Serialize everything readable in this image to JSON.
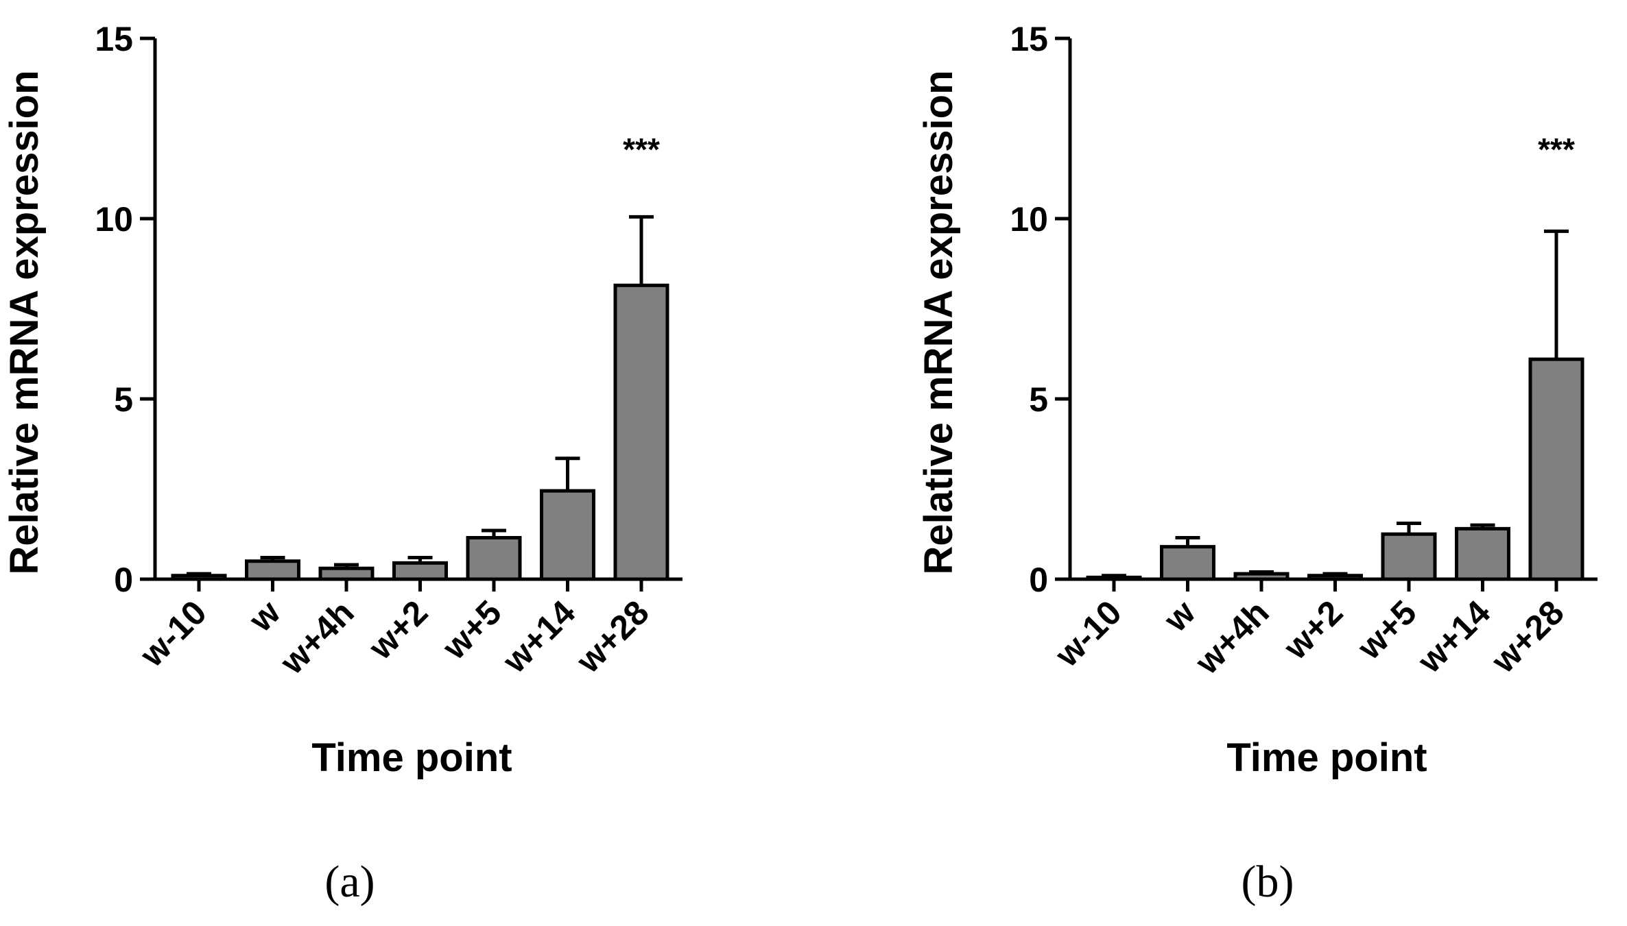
{
  "chart_data": [
    {
      "type": "bar",
      "panel_label": "(a)",
      "categories": [
        "w-10",
        "w",
        "w+4h",
        "w+2",
        "w+5",
        "w+14",
        "w+28"
      ],
      "values": [
        0.1,
        0.5,
        0.3,
        0.45,
        1.15,
        2.45,
        8.15
      ],
      "errors": [
        0.05,
        0.1,
        0.1,
        0.15,
        0.2,
        0.9,
        1.9
      ],
      "significance": [
        "",
        "",
        "",
        "",
        "",
        "",
        "***"
      ],
      "xlabel": "Time point",
      "ylabel": "Relative mRNA expression",
      "ylim": [
        0,
        15
      ],
      "yticks": [
        0,
        5,
        10,
        15
      ],
      "bar_color": "#808080"
    },
    {
      "type": "bar",
      "panel_label": "(b)",
      "categories": [
        "w-10",
        "w",
        "w+4h",
        "w+2",
        "w+5",
        "w+14",
        "w+28"
      ],
      "values": [
        0.05,
        0.9,
        0.15,
        0.1,
        1.25,
        1.4,
        6.1
      ],
      "errors": [
        0.05,
        0.25,
        0.05,
        0.05,
        0.3,
        0.1,
        3.55
      ],
      "significance": [
        "",
        "",
        "",
        "",
        "",
        "",
        "***"
      ],
      "xlabel": "Time point",
      "ylabel": "Relative mRNA expression",
      "ylim": [
        0,
        15
      ],
      "yticks": [
        0,
        5,
        10,
        15
      ],
      "bar_color": "#808080"
    }
  ]
}
